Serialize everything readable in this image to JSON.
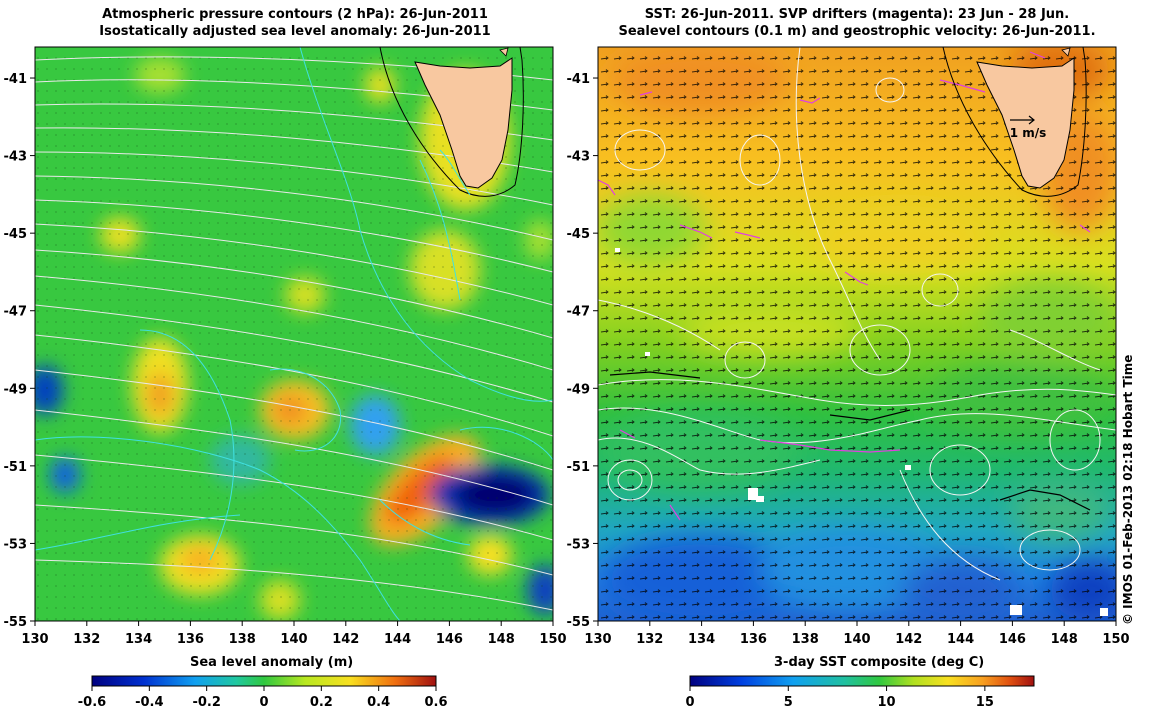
{
  "left_panel": {
    "title_line1": "Atmospheric pressure contours (2 hPa): 26-Jun-2011",
    "title_line2": "Isostatically adjusted sea level anomaly: 26-Jun-2011",
    "colorbar_label": "Sea level anomaly (m)",
    "colorbar_ticks": [
      "-0.6",
      "-0.4",
      "-0.2",
      "0",
      "0.2",
      "0.4",
      "0.6"
    ]
  },
  "right_panel": {
    "title_line1": "SST: 26-Jun-2011. SVP drifters (magenta): 23 Jun - 28 Jun.",
    "title_line2": "Sealevel contours (0.1 m) and geostrophic velocity: 26-Jun-2011.",
    "colorbar_label": "3-day SST composite (deg C)",
    "colorbar_ticks": [
      "0",
      "5",
      "10",
      "15"
    ],
    "velocity_scale_label": "1 m/s"
  },
  "axes": {
    "lon_ticks": [
      "130",
      "132",
      "134",
      "136",
      "138",
      "140",
      "142",
      "144",
      "146",
      "148",
      "150"
    ],
    "lat_ticks": [
      "-41",
      "-43",
      "-45",
      "-47",
      "-49",
      "-51",
      "-53",
      "-55"
    ]
  },
  "credit": "© IMOS 01-Feb-2013 02:18 Hobart Time",
  "colors": {
    "land": "#f8c8a0",
    "sla_background": "#38c840",
    "sst_warm": "#f0a020",
    "sst_cold": "#2070e0",
    "drifter": "#e040e0",
    "pressure_contour": "#e0e0e0",
    "cyan_contour": "#40e0e0"
  }
}
